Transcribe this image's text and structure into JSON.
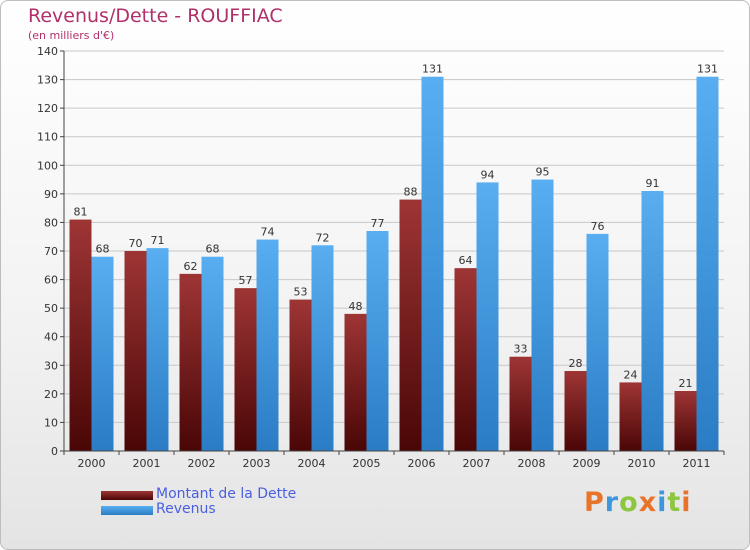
{
  "title": "Revenus/Dette - ROUFFIAC",
  "subtitle": "(en milliers d'€)",
  "logo_text": "Proxiti",
  "chart_data": {
    "type": "bar",
    "title": "Revenus/Dette - ROUFFIAC",
    "ylabel": "(en milliers d'€)",
    "xlabel": "",
    "categories": [
      "2000",
      "2001",
      "2002",
      "2003",
      "2004",
      "2005",
      "2006",
      "2007",
      "2008",
      "2009",
      "2010",
      "2011"
    ],
    "series": [
      {
        "name": "Montant de la Dette",
        "color": "#7a1a1a",
        "values": [
          81,
          70,
          62,
          57,
          53,
          48,
          88,
          64,
          33,
          28,
          24,
          21
        ]
      },
      {
        "name": "Revenus",
        "color": "#3e97dc",
        "values": [
          68,
          71,
          68,
          74,
          72,
          77,
          131,
          94,
          95,
          76,
          91,
          131
        ]
      }
    ],
    "ylim": [
      0,
      140
    ],
    "yticks": [
      0,
      10,
      20,
      30,
      40,
      50,
      60,
      70,
      80,
      90,
      100,
      110,
      120,
      130,
      140
    ],
    "grid": true,
    "legend": "bottom-left"
  }
}
